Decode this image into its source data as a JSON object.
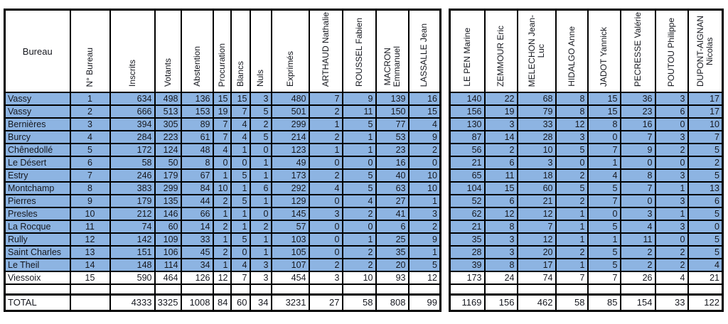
{
  "colors": {
    "row_fill": "#8DB4E2",
    "plain_fill": "#ffffff",
    "border": "#000000",
    "text": "#16181f"
  },
  "left_table": {
    "bureau_header": "Bureau",
    "headers": [
      "N° Bureau",
      "Inscrits",
      "Votants",
      "Abstention",
      "Procuration",
      "Blancs",
      "Nuls",
      "Exprimés",
      "ARTHAUD Nathalie",
      "ROUSSEL Fabien",
      "MACRON\nEmmanuel",
      "LASSALLE Jean"
    ]
  },
  "right_table": {
    "headers": [
      "LE PEN Marine",
      "ZEMMOUR Eric",
      "MELECHON Jean-\nLuc",
      "HIDALGO Anne",
      "JADOT Yannick",
      "PECRESSE Valérie",
      "POUTOU Philippe",
      "DUPONT-AIGNAN\nNicolas"
    ]
  },
  "rows": [
    {
      "bureau": "Vassy",
      "num": 1,
      "values_left": [
        634,
        498,
        136,
        15,
        15,
        3,
        480,
        7,
        9,
        139,
        16
      ],
      "values_right": [
        140,
        22,
        68,
        8,
        15,
        36,
        3,
        17
      ],
      "highlighted": true
    },
    {
      "bureau": "Vassy",
      "num": 2,
      "values_left": [
        666,
        513,
        153,
        19,
        7,
        5,
        501,
        2,
        11,
        150,
        15
      ],
      "values_right": [
        156,
        19,
        79,
        8,
        15,
        23,
        6,
        17
      ],
      "highlighted": true
    },
    {
      "bureau": "Bernières",
      "num": 3,
      "values_left": [
        394,
        305,
        89,
        7,
        4,
        2,
        299,
        1,
        5,
        77,
        4
      ],
      "values_right": [
        130,
        3,
        33,
        12,
        8,
        16,
        0,
        10
      ],
      "highlighted": true
    },
    {
      "bureau": "Burcy",
      "num": 4,
      "values_left": [
        284,
        223,
        61,
        7,
        4,
        5,
        214,
        2,
        1,
        53,
        9
      ],
      "values_right": [
        87,
        14,
        28,
        3,
        0,
        7,
        3,
        7
      ],
      "highlighted": true
    },
    {
      "bureau": "Chênedollé",
      "num": 5,
      "values_left": [
        172,
        124,
        48,
        4,
        1,
        0,
        123,
        1,
        1,
        23,
        2
      ],
      "values_right": [
        56,
        2,
        10,
        5,
        7,
        9,
        2,
        5
      ],
      "highlighted": true
    },
    {
      "bureau": "Le Désert",
      "num": 6,
      "values_left": [
        58,
        50,
        8,
        0,
        0,
        1,
        49,
        0,
        0,
        16,
        0
      ],
      "values_right": [
        21,
        6,
        3,
        0,
        1,
        0,
        0,
        2
      ],
      "highlighted": true
    },
    {
      "bureau": "Estry",
      "num": 7,
      "values_left": [
        246,
        179,
        67,
        1,
        5,
        1,
        173,
        2,
        5,
        40,
        10
      ],
      "values_right": [
        65,
        11,
        18,
        2,
        4,
        8,
        3,
        5
      ],
      "highlighted": true
    },
    {
      "bureau": "Montchamp",
      "num": 8,
      "values_left": [
        383,
        299,
        84,
        10,
        1,
        6,
        292,
        4,
        5,
        63,
        10
      ],
      "values_right": [
        104,
        15,
        60,
        5,
        5,
        7,
        1,
        13
      ],
      "highlighted": true
    },
    {
      "bureau": "Pierres",
      "num": 9,
      "values_left": [
        179,
        135,
        44,
        2,
        5,
        1,
        129,
        0,
        4,
        27,
        1
      ],
      "values_right": [
        52,
        6,
        21,
        2,
        7,
        0,
        3,
        6
      ],
      "highlighted": true
    },
    {
      "bureau": "Presles",
      "num": 10,
      "values_left": [
        212,
        146,
        66,
        1,
        1,
        0,
        145,
        3,
        2,
        41,
        3
      ],
      "values_right": [
        62,
        12,
        12,
        1,
        0,
        3,
        1,
        5
      ],
      "highlighted": true
    },
    {
      "bureau": "La Rocque",
      "num": 11,
      "values_left": [
        74,
        60,
        14,
        2,
        1,
        2,
        57,
        0,
        0,
        6,
        2
      ],
      "values_right": [
        21,
        8,
        7,
        1,
        5,
        4,
        3,
        0
      ],
      "highlighted": true
    },
    {
      "bureau": "Rully",
      "num": 12,
      "values_left": [
        142,
        109,
        33,
        1,
        5,
        1,
        103,
        0,
        1,
        25,
        9
      ],
      "values_right": [
        35,
        3,
        12,
        1,
        1,
        11,
        0,
        5
      ],
      "highlighted": true
    },
    {
      "bureau": "Saint Charles",
      "num": 13,
      "values_left": [
        151,
        106,
        45,
        2,
        0,
        1,
        105,
        0,
        2,
        35,
        1
      ],
      "values_right": [
        28,
        3,
        20,
        2,
        5,
        2,
        2,
        5
      ],
      "highlighted": true
    },
    {
      "bureau": "Le Theil",
      "num": 14,
      "values_left": [
        148,
        114,
        34,
        1,
        4,
        3,
        107,
        2,
        2,
        20,
        5
      ],
      "values_right": [
        39,
        8,
        17,
        1,
        5,
        2,
        2,
        4
      ],
      "highlighted": true
    },
    {
      "bureau": "Viessoix",
      "num": 15,
      "values_left": [
        590,
        464,
        126,
        12,
        7,
        3,
        454,
        3,
        10,
        93,
        12
      ],
      "values_right": [
        173,
        24,
        74,
        7,
        7,
        26,
        4,
        21
      ],
      "highlighted": false
    }
  ],
  "total_row": {
    "label": "TOTAL",
    "values_left": [
      4333,
      3325,
      1008,
      84,
      60,
      34,
      3231,
      27,
      58,
      808,
      99
    ],
    "values_right": [
      1169,
      156,
      462,
      58,
      85,
      154,
      33,
      122
    ]
  }
}
